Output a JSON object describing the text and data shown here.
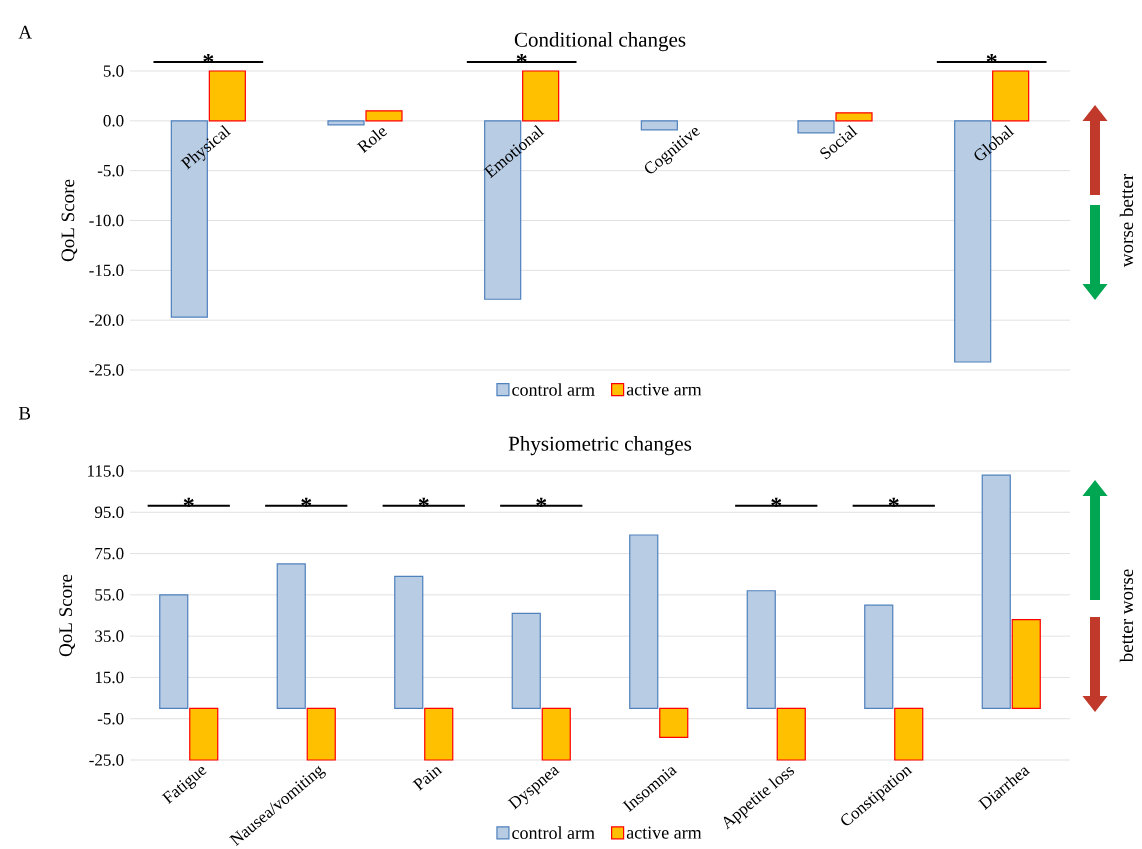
{
  "chart_data": [
    {
      "type": "bar",
      "title": "Conditional changes",
      "ylabel": "QoL Score",
      "categories": [
        "Physical",
        "Role",
        "Emotional",
        "Cognitive",
        "Social",
        "Global"
      ],
      "series": [
        {
          "name": "control arm",
          "color": "#b8cce4",
          "values": [
            -19.7,
            -0.4,
            -17.9,
            -0.9,
            -1.2,
            -24.2
          ]
        },
        {
          "name": "active arm",
          "color": "#ffc000",
          "values": [
            5.0,
            1.0,
            5.0,
            null,
            0.8,
            5.0
          ]
        }
      ],
      "ylim": [
        -25,
        5
      ],
      "yticks": [
        {
          "value": 5,
          "label": "5.0"
        },
        {
          "value": 0,
          "label": "0.0"
        },
        {
          "value": -5,
          "label": "-5.0"
        },
        {
          "value": -10,
          "label": "-10.0"
        },
        {
          "value": -15,
          "label": "-15.0"
        },
        {
          "value": -20,
          "label": "-20.0"
        },
        {
          "value": -25,
          "label": "-25.0"
        }
      ],
      "grid": "y",
      "legend": "bottom",
      "annotations": [
        "*",
        "*",
        "*",
        "worse better",
        "A"
      ]
    },
    {
      "type": "bar",
      "title": "Physiometric changes",
      "ylabel": "QoL Score",
      "categories": [
        "Fatigue",
        "Nausea/vomiting",
        "Pain",
        "Dyspnea",
        "Insomnia",
        "Appetite loss",
        "Constipation",
        "Diarrhea"
      ],
      "series": [
        {
          "name": "control arm",
          "color": "#b8cce4",
          "values": [
            55,
            70,
            64,
            46,
            84,
            57,
            50,
            113
          ]
        },
        {
          "name": "active arm",
          "color": "#ffc000",
          "values": [
            -25,
            -25,
            -25,
            -25,
            -14,
            -25,
            -25,
            43
          ]
        }
      ],
      "ylim": [
        -25,
        115
      ],
      "yticks": [
        {
          "value": 115,
          "label": "115.0"
        },
        {
          "value": 95,
          "label": "95.0"
        },
        {
          "value": 75,
          "label": "75.0"
        },
        {
          "value": 55,
          "label": "55.0"
        },
        {
          "value": 35,
          "label": "35.0"
        },
        {
          "value": 15,
          "label": "15.0"
        },
        {
          "value": -5,
          "label": "-5.0"
        },
        {
          "value": -25,
          "label": "-25.0"
        }
      ],
      "grid": "y",
      "legend": "bottom",
      "annotations": [
        "*",
        "*",
        "*",
        "*",
        "*",
        "*",
        "better worse",
        "B"
      ]
    }
  ]
}
